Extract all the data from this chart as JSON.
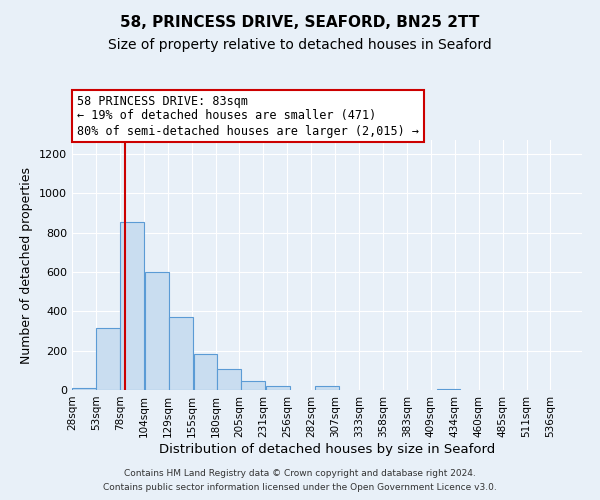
{
  "title": "58, PRINCESS DRIVE, SEAFORD, BN25 2TT",
  "subtitle": "Size of property relative to detached houses in Seaford",
  "xlabel": "Distribution of detached houses by size in Seaford",
  "ylabel": "Number of detached properties",
  "bar_left_edges": [
    28,
    53,
    78,
    104,
    129,
    155,
    180,
    205,
    231,
    256,
    282,
    307,
    333,
    358,
    383,
    409,
    434,
    460,
    485,
    511
  ],
  "bar_heights": [
    10,
    315,
    855,
    600,
    370,
    185,
    105,
    47,
    20,
    0,
    20,
    0,
    0,
    0,
    0,
    5,
    0,
    0,
    0,
    0
  ],
  "bin_width": 25,
  "bar_color": "#c9ddf0",
  "bar_edge_color": "#5b9bd5",
  "xlim_left": 28,
  "xlim_right": 561,
  "ylim_top": 1270,
  "vline_x": 83,
  "vline_color": "#cc0000",
  "annotation_line1": "58 PRINCESS DRIVE: 83sqm",
  "annotation_line2": "← 19% of detached houses are smaller (471)",
  "annotation_line3": "80% of semi-detached houses are larger (2,015) →",
  "annotation_box_color": "#ffffff",
  "annotation_box_edge": "#cc0000",
  "tick_labels": [
    "28sqm",
    "53sqm",
    "78sqm",
    "104sqm",
    "129sqm",
    "155sqm",
    "180sqm",
    "205sqm",
    "231sqm",
    "256sqm",
    "282sqm",
    "307sqm",
    "333sqm",
    "358sqm",
    "383sqm",
    "409sqm",
    "434sqm",
    "460sqm",
    "485sqm",
    "511sqm",
    "536sqm"
  ],
  "footer_line1": "Contains HM Land Registry data © Crown copyright and database right 2024.",
  "footer_line2": "Contains public sector information licensed under the Open Government Licence v3.0.",
  "background_color": "#e8f0f8",
  "plot_bg_color": "#e8f0f8",
  "grid_color": "#ffffff",
  "title_fontsize": 11,
  "subtitle_fontsize": 10,
  "ylabel_fontsize": 9,
  "xlabel_fontsize": 9.5,
  "tick_fontsize": 7.5,
  "yticks": [
    0,
    200,
    400,
    600,
    800,
    1000,
    1200
  ]
}
